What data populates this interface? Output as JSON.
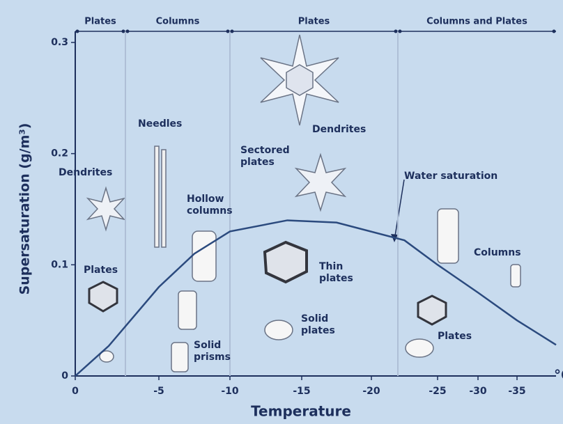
{
  "chart_data": {
    "type": "line",
    "x_label": "Temperature",
    "x_unit": "°C",
    "y_label": "Supersaturation (g/m³)",
    "xlim": [
      0,
      -40
    ],
    "ylim": [
      0,
      0.31
    ],
    "xticks": [
      0,
      -5,
      -10,
      -15,
      -20,
      -25,
      -30,
      -35
    ],
    "yticks": [
      0,
      0.1,
      0.2,
      0.3
    ],
    "series": [
      {
        "name": "Water saturation",
        "color": "#2b4a7e",
        "x": [
          0,
          -2,
          -5,
          -7.5,
          -10,
          -14,
          -17.5,
          -22.5,
          -25,
          -30,
          -35,
          -40
        ],
        "values": [
          0,
          0.027,
          0.08,
          0.11,
          0.13,
          0.14,
          0.138,
          0.122,
          0.1,
          0.075,
          0.05,
          0.028
        ]
      }
    ],
    "regimes": [
      {
        "label": "Plates",
        "range": [
          0,
          -3
        ]
      },
      {
        "label": "Columns",
        "range": [
          -3,
          -10
        ]
      },
      {
        "label": "Plates",
        "range": [
          -10,
          -22
        ]
      },
      {
        "label": "Columns and Plates",
        "range": [
          -22,
          -40
        ]
      }
    ],
    "annotations": [
      "Dendrites",
      "Needles",
      "Hollow columns",
      "Plates",
      "Solid prisms",
      "Dendrites",
      "Sectored plates",
      "Thin plates",
      "Solid plates",
      "Columns",
      "Plates"
    ]
  }
}
